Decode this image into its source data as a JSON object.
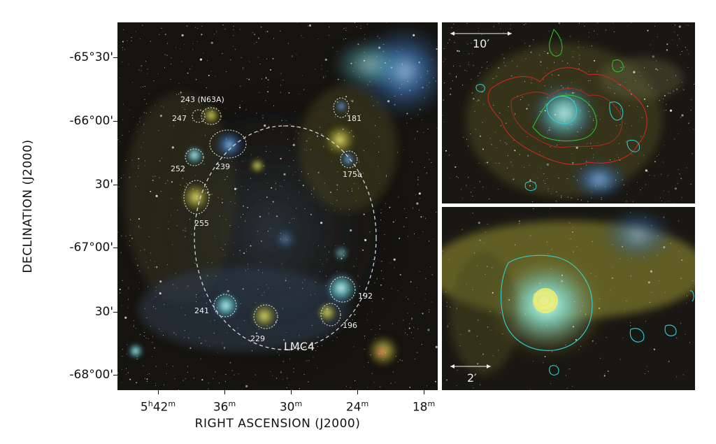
{
  "axes": {
    "y_title": "DECLINATION (J2000)",
    "x_title": "RIGHT ASCENSION (J2000)",
    "y_ticks": [
      "-65°30'",
      "-66°00'",
      "30'",
      "-67°00'",
      "30'",
      "-68°00'"
    ],
    "x_ticks": [
      {
        "main": "5",
        "sup1": "h",
        "mid": "42",
        "sup2": "m"
      },
      {
        "main": "",
        "sup1": "",
        "mid": "36",
        "sup2": "m"
      },
      {
        "main": "",
        "sup1": "",
        "mid": "30",
        "sup2": "m"
      },
      {
        "main": "",
        "sup1": "",
        "mid": "24",
        "sup2": "m"
      },
      {
        "main": "",
        "sup1": "",
        "mid": "18",
        "sup2": "m"
      }
    ]
  },
  "main_panel": {
    "region_labels": {
      "r243": "243 (N63A)",
      "r247": "247",
      "r181": "181",
      "r252": "252",
      "r239": "239",
      "r175a": "175a",
      "r255": "255",
      "r192": "192",
      "r241": "241",
      "r196": "196",
      "r229": "229"
    },
    "ring_label": "LMC4"
  },
  "insets": {
    "top_scale": "10′",
    "bottom_scale": "2′"
  },
  "colors": {
    "background": "#141210",
    "nebula_cyan": "#6fd6d8",
    "nebula_yellow": "#d9d64a",
    "nebula_blue": "#3f7fc8",
    "contour_red": "#d8261e",
    "contour_green": "#2ecb2e",
    "contour_cyan": "#2fd3d8"
  }
}
